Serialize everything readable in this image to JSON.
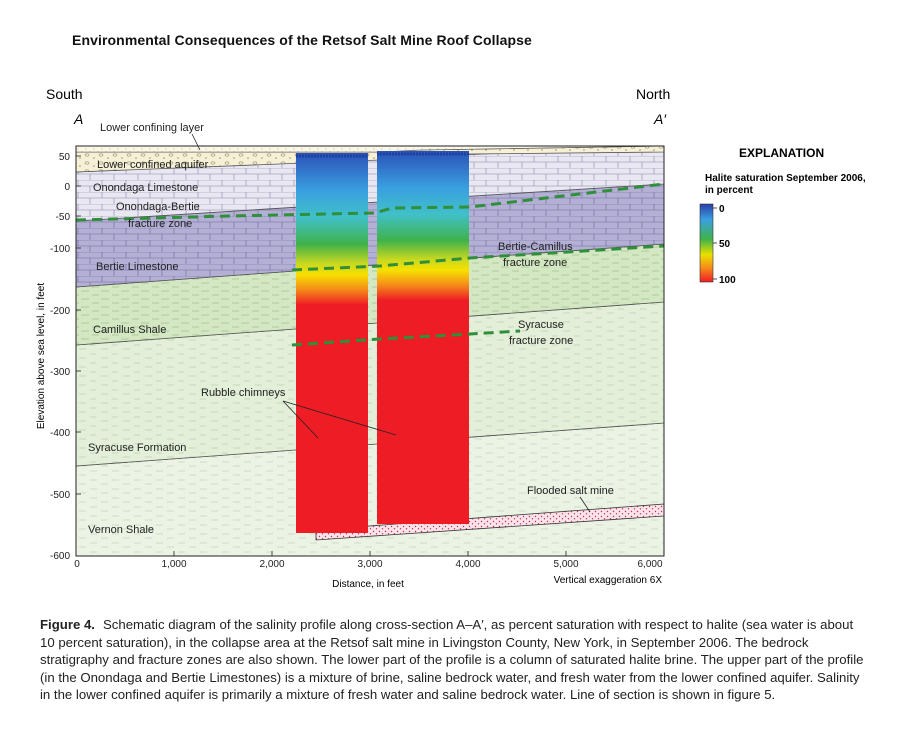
{
  "title": "Environmental Consequences of the Retsof Salt Mine Roof Collapse",
  "section_ends": {
    "left_direction": "South",
    "left_letter": "A",
    "right_direction": "North",
    "right_letter": "A′"
  },
  "axes": {
    "ylabel": "Elevation above sea level, in feet",
    "xlabel": "Distance, in feet",
    "y_ticks": [
      "50",
      "0",
      "-50",
      "-100",
      "-200",
      "-300",
      "-400",
      "-500",
      "-600"
    ],
    "x_ticks": [
      "0",
      "1,000",
      "2,000",
      "3,000",
      "4,000",
      "5,000",
      "6,000"
    ],
    "vertical_exaggeration": "Vertical exaggeration 6X"
  },
  "labels": {
    "lower_confining_layer": "Lower confining layer",
    "lower_confined_aquifer": "Lower confined aquifer",
    "onondaga_limestone": "Onondaga Limestone",
    "onondaga_bertie_fz_1": "Onondaga-Bertie",
    "onondaga_bertie_fz_2": "fracture zone",
    "bertie_limestone": "Bertie Limestone",
    "bertie_camillus_fz_1": "Bertie-Camillus",
    "bertie_camillus_fz_2": "fracture zone",
    "camillus_shale": "Camillus Shale",
    "syracuse_fz_1": "Syracuse",
    "syracuse_fz_2": "fracture zone",
    "rubble_chimneys": "Rubble chimneys",
    "syracuse_formation": "Syracuse Formation",
    "flooded_salt_mine": "Flooded salt mine",
    "vernon_shale": "Vernon Shale"
  },
  "explanation": {
    "heading": "EXPLANATION",
    "subtitle_1": "Halite saturation September 2006,",
    "subtitle_2": "in percent",
    "ticks": [
      "0",
      "50",
      "100"
    ]
  },
  "caption": {
    "figure_label": "Figure 4.",
    "text": "Schematic diagram of the salinity profile along cross-section A–A′, as percent saturation with respect to halite (sea water is about 10 percent saturation), in the collapse area at the Retsof salt mine in Livingston County, New York, in September 2006. The bedrock stratigraphy and fracture zones are also shown. The lower part of the profile is a column of saturated halite brine. The upper part of the profile (in the Onondaga and Bertie Limestones) is a mixture of brine, saline bedrock water, and fresh water from the lower confined aquifer. Salinity in the lower confined aquifer is primarily a mixture of fresh water and saline bedrock water. Line of section is shown in figure 5."
  },
  "colors": {
    "salinity_fresh": "#2a52b8",
    "salinity_mid": "#3fb24a",
    "salinity_saturated": "#ee1c25",
    "fracture_zone": "#2f8f3a",
    "limestone": "#e9e7f2",
    "bertie": "#b2aed4",
    "shale": "#d3e7c2",
    "syracuse": "#e3efd8",
    "vernon": "#e9f2e2",
    "aquifer": "#f5f0d4",
    "mine": "#f7dde6"
  }
}
